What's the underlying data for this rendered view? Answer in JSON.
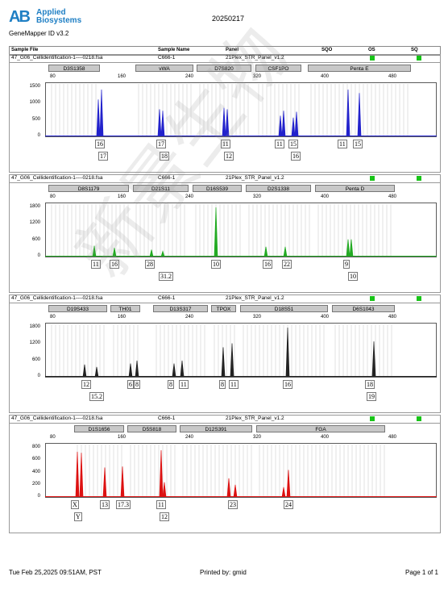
{
  "header": {
    "logo_mark": "AB",
    "logo_line1": "Applied",
    "logo_line2": "Biosystems",
    "software": "GeneMapper ID v3.2",
    "date": "20250217"
  },
  "columns": {
    "sample_file": "Sample File",
    "sample_name": "Sample Name",
    "panel": "Panel",
    "sqo": "SQO",
    "os": "OS",
    "sq": "SQ"
  },
  "panels": [
    {
      "sample_file": "47_G06_Cellidentification-1----0218.fsa",
      "sample_name": "C666-1",
      "panel": "21Plex_STR_Panel_v1.2",
      "color": "#2222cc",
      "y_ticks": [
        "1500",
        "1000",
        "500",
        "0"
      ],
      "x_ticks": [
        "80",
        "160",
        "240",
        "320",
        "400",
        "480"
      ],
      "loci": [
        "D3S1358",
        "vWA",
        "D7S820",
        "CSF1PO",
        "Penta E"
      ],
      "alleles": [
        "16",
        "17",
        "17",
        "18",
        "11",
        "12",
        "11",
        "15",
        "16",
        "11",
        "15"
      ]
    },
    {
      "sample_file": "47_G06_Cellidentification-1----0218.fsa",
      "sample_name": "C666-1",
      "panel": "21Plex_STR_Panel_v1.2",
      "color": "#22aa22",
      "y_ticks": [
        "1800",
        "1200",
        "600",
        "0"
      ],
      "x_ticks": [
        "80",
        "160",
        "240",
        "320",
        "400",
        "480"
      ],
      "loci": [
        "D8S1179",
        "D21S11",
        "D16S539",
        "D2S1338",
        "Penta D"
      ],
      "alleles": [
        "11",
        "16",
        "28",
        "31.2",
        "10",
        "16",
        "22",
        "9",
        "10"
      ]
    },
    {
      "sample_file": "47_G06_Cellidentification-1----0218.fsa",
      "sample_name": "C666-1",
      "panel": "21Plex_STR_Panel_v1.2",
      "color": "#222222",
      "y_ticks": [
        "1800",
        "1200",
        "600",
        "0"
      ],
      "x_ticks": [
        "80",
        "160",
        "240",
        "320",
        "400",
        "480"
      ],
      "loci": [
        "D19S433",
        "TH01",
        "D13S317",
        "TPOX",
        "D18S51",
        "D6S1043"
      ],
      "alleles": [
        "12",
        "15.2",
        "6",
        "8",
        "8",
        "11",
        "8",
        "11",
        "16",
        "18",
        "19"
      ]
    },
    {
      "sample_file": "47_G06_Cellidentification-1----0218.fsa",
      "sample_name": "C666-1",
      "panel": "21Plex_STR_Panel_v1.2",
      "color": "#dd1111",
      "y_ticks": [
        "800",
        "600",
        "400",
        "200",
        "0"
      ],
      "x_ticks": [
        "80",
        "160",
        "240",
        "320",
        "400",
        "480"
      ],
      "loci": [
        "D1S1656",
        "D5S818",
        "D12S391",
        "FGA"
      ],
      "alleles": [
        "X",
        "Y",
        "13",
        "17.3",
        "11",
        "12",
        "23",
        "24"
      ]
    }
  ],
  "footer": {
    "timestamp": "Tue Feb 25,2025 09:51AM, PST",
    "printed_by": "Printed by: gmid",
    "page": "Page 1 of 1"
  }
}
